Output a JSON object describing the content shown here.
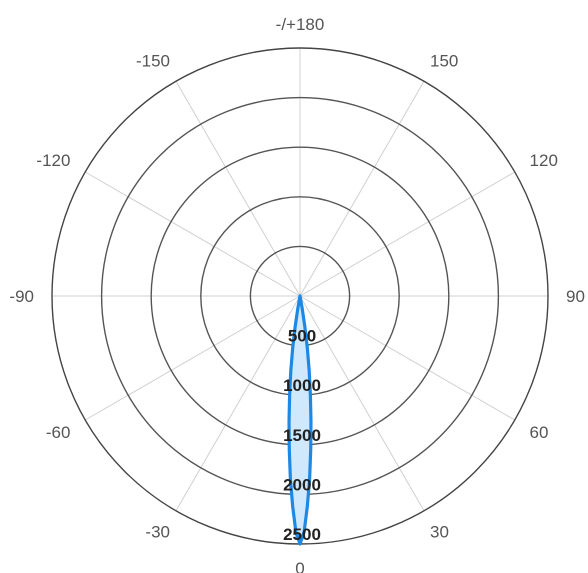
{
  "chart_data": {
    "type": "polar",
    "angle_ticks": [
      {
        "deg": 180,
        "label": "-/+180"
      },
      {
        "deg": 150,
        "label": "150"
      },
      {
        "deg": 120,
        "label": "120"
      },
      {
        "deg": 90,
        "label": "90"
      },
      {
        "deg": 60,
        "label": "60"
      },
      {
        "deg": 30,
        "label": "30"
      },
      {
        "deg": 0,
        "label": "0"
      },
      {
        "deg": -30,
        "label": "-30"
      },
      {
        "deg": -60,
        "label": "-60"
      },
      {
        "deg": -90,
        "label": "-90"
      },
      {
        "deg": -120,
        "label": "-120"
      },
      {
        "deg": -150,
        "label": "-150"
      }
    ],
    "radial_ticks": [
      {
        "value": 500,
        "label": "500"
      },
      {
        "value": 1000,
        "label": "1000"
      },
      {
        "value": 1500,
        "label": "1500"
      },
      {
        "value": 2000,
        "label": "2000"
      },
      {
        "value": 2500,
        "label": "2500"
      }
    ],
    "r_max": 2500,
    "zero_direction": "bottom",
    "angle_direction": "counterclockwise",
    "grid": true,
    "series": [
      {
        "color": "#1e88e5",
        "fill": "#cfe8fb",
        "points": [
          {
            "angle": 0,
            "r": 2500
          },
          {
            "angle": 1,
            "r": 2380
          },
          {
            "angle": 2,
            "r": 2120
          },
          {
            "angle": 3,
            "r": 1850
          },
          {
            "angle": 4,
            "r": 1550
          },
          {
            "angle": 5,
            "r": 1270
          },
          {
            "angle": 6,
            "r": 1000
          },
          {
            "angle": 7,
            "r": 760
          },
          {
            "angle": 8,
            "r": 530
          },
          {
            "angle": 9,
            "r": 310
          },
          {
            "angle": 10,
            "r": 120
          },
          {
            "angle": 11,
            "r": 0
          },
          {
            "angle": -11,
            "r": 0
          },
          {
            "angle": -10,
            "r": 120
          },
          {
            "angle": -9,
            "r": 310
          },
          {
            "angle": -8,
            "r": 530
          },
          {
            "angle": -7,
            "r": 760
          },
          {
            "angle": -6,
            "r": 1000
          },
          {
            "angle": -5,
            "r": 1270
          },
          {
            "angle": -4,
            "r": 1550
          },
          {
            "angle": -3,
            "r": 1850
          },
          {
            "angle": -2,
            "r": 2120
          },
          {
            "angle": -1,
            "r": 2380
          }
        ]
      }
    ]
  }
}
